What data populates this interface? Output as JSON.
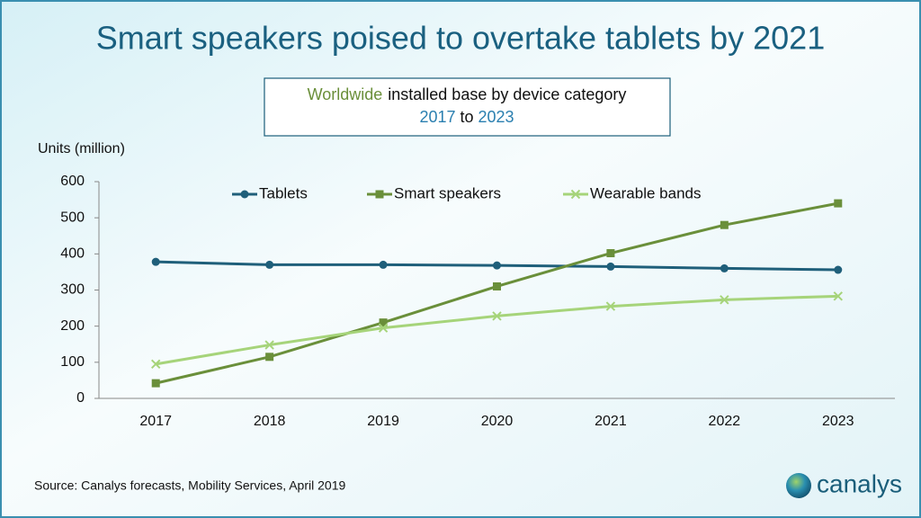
{
  "chart_data": {
    "type": "line",
    "title": "Smart speakers poised to overtake tablets by 2021",
    "subtitle": {
      "line1": [
        "Worldwide",
        "installed base by device category"
      ],
      "line2": [
        "2017",
        "to",
        "2023"
      ]
    },
    "y_label": "Units (million)",
    "source": "Source:  Canalys forecasts, Mobility Services, April 2019",
    "logo": "canalys",
    "categories": [
      "2017",
      "2018",
      "2019",
      "2020",
      "2021",
      "2022",
      "2023"
    ],
    "series": [
      {
        "name": "Tablets",
        "color": "#1f5f7a",
        "marker": "circle",
        "values": [
          378,
          370,
          370,
          368,
          365,
          360,
          356
        ]
      },
      {
        "name": "Smart speakers",
        "color": "#6a8f3a",
        "marker": "square",
        "values": [
          42,
          115,
          210,
          310,
          402,
          480,
          540
        ]
      },
      {
        "name": "Wearable bands",
        "color": "#a6d47a",
        "marker": "x",
        "values": [
          95,
          148,
          195,
          228,
          255,
          273,
          283
        ]
      }
    ],
    "ylim": [
      0,
      600
    ],
    "yticks": [
      0,
      100,
      200,
      300,
      400,
      500,
      600
    ],
    "grid": false
  }
}
